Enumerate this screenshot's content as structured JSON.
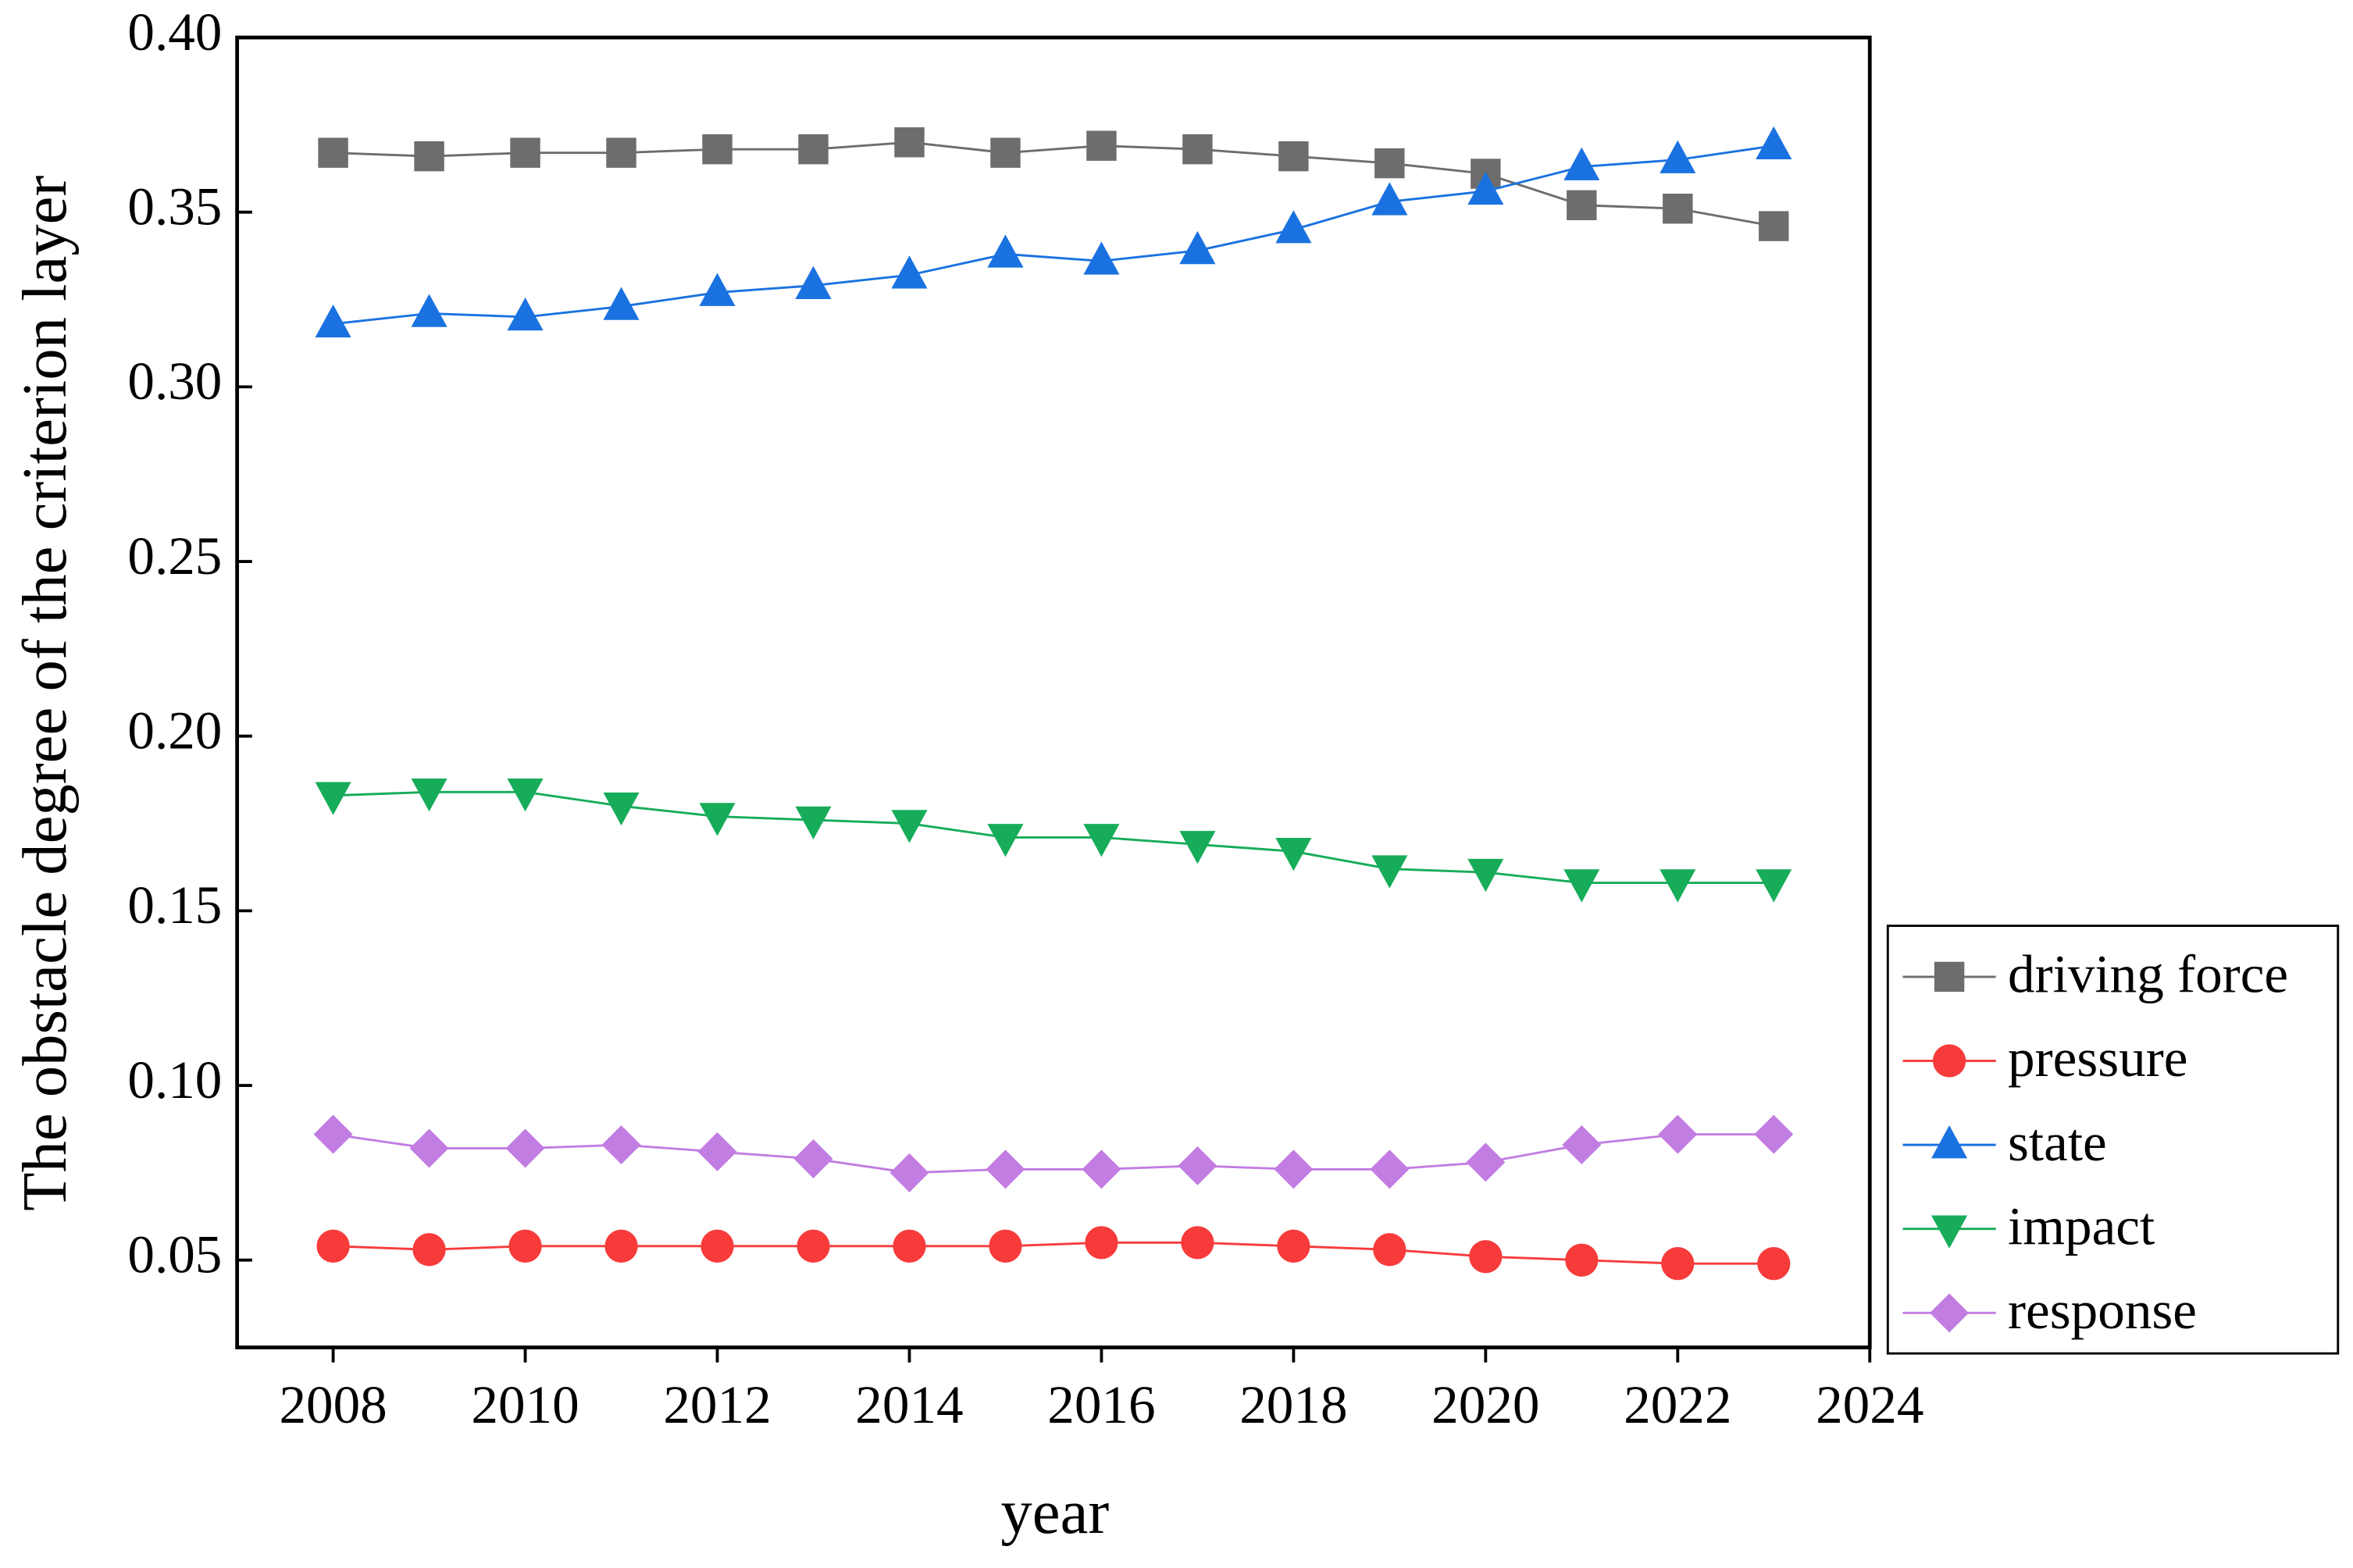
{
  "chart_data": {
    "type": "line",
    "xlabel": "year",
    "ylabel": "The obstacle degree of the criterion layer",
    "x": [
      2008,
      2009,
      2010,
      2011,
      2012,
      2013,
      2014,
      2015,
      2016,
      2017,
      2018,
      2019,
      2020,
      2021,
      2022,
      2023
    ],
    "xlim": [
      2007,
      2024
    ],
    "xticks": [
      2008,
      2010,
      2012,
      2014,
      2016,
      2018,
      2020,
      2022,
      2024
    ],
    "ylim": [
      0.025,
      0.4
    ],
    "yticks": [
      0.05,
      {
        "value": 0.1,
        "label": "0.10"
      },
      0.15,
      {
        "value": 0.2,
        "label": "0.20"
      },
      0.25,
      {
        "value": 0.3,
        "label": "0.30"
      },
      0.35,
      {
        "value": 0.4,
        "label": "0.40"
      }
    ],
    "legend": "outside-right",
    "series": [
      {
        "name": "driving force",
        "color": "#6d6d6d",
        "marker": "square",
        "values": [
          0.367,
          0.366,
          0.367,
          0.367,
          0.368,
          0.368,
          0.37,
          0.367,
          0.369,
          0.368,
          0.366,
          0.364,
          0.361,
          0.352,
          0.351,
          0.346
        ]
      },
      {
        "name": "pressure",
        "color": "#f73b3b",
        "marker": "circle",
        "values": [
          0.054,
          0.053,
          0.054,
          0.054,
          0.054,
          0.054,
          0.054,
          0.054,
          0.055,
          0.055,
          0.054,
          0.053,
          0.051,
          0.05,
          0.049,
          0.049
        ]
      },
      {
        "name": "state",
        "color": "#1a72e0",
        "marker": "triangle-up",
        "values": [
          0.318,
          0.321,
          0.32,
          0.323,
          0.327,
          0.329,
          0.332,
          0.338,
          0.336,
          0.339,
          0.345,
          0.353,
          0.356,
          0.363,
          0.365,
          0.369
        ]
      },
      {
        "name": "impact",
        "color": "#17ac5a",
        "marker": "triangle-down",
        "values": [
          0.183,
          0.184,
          0.184,
          0.18,
          0.177,
          0.176,
          0.175,
          0.171,
          0.171,
          0.169,
          0.167,
          0.162,
          0.161,
          0.158,
          0.158,
          0.158
        ]
      },
      {
        "name": "response",
        "color": "#c27de2",
        "marker": "diamond",
        "values": [
          0.086,
          0.082,
          0.082,
          0.083,
          0.081,
          0.079,
          0.075,
          0.076,
          0.076,
          0.077,
          0.076,
          0.076,
          0.078,
          0.083,
          0.086,
          0.086
        ]
      }
    ]
  }
}
